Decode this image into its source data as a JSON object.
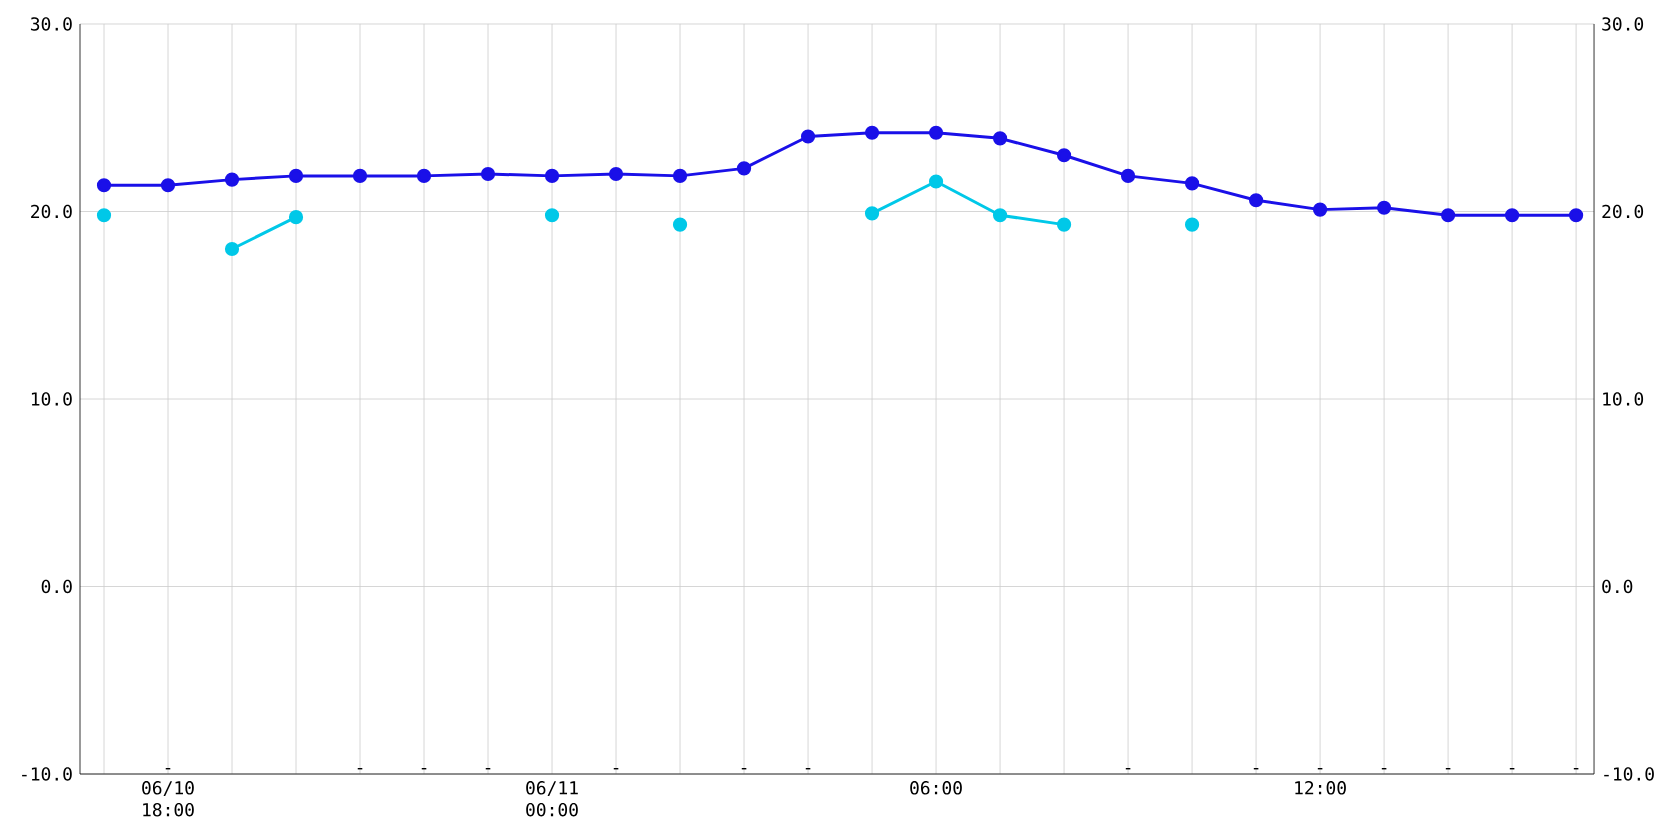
{
  "chart_data": {
    "type": "line",
    "marker": "circle",
    "grid": true,
    "line_style": "solid",
    "categories": [
      null,
      "06/10 18:00",
      null,
      null,
      null,
      null,
      null,
      "06/11 00:00",
      null,
      null,
      null,
      null,
      null,
      "06:00",
      null,
      null,
      null,
      null,
      null,
      "12:00",
      null,
      null,
      null,
      null
    ],
    "series": [
      {
        "color": "#1a10e8",
        "values": [
          21.4,
          21.4,
          21.7,
          21.9,
          21.9,
          21.9,
          22.0,
          21.9,
          22.0,
          21.9,
          22.3,
          24.0,
          24.2,
          24.2,
          23.9,
          23.0,
          21.9,
          21.5,
          20.6,
          20.1,
          20.2,
          19.8,
          19.8,
          19.8
        ]
      },
      {
        "color": "#00c8e8",
        "values": [
          19.8,
          null,
          18.0,
          19.7,
          null,
          null,
          null,
          19.8,
          null,
          19.3,
          null,
          null,
          19.9,
          21.6,
          19.8,
          19.3,
          null,
          19.3,
          null,
          null,
          null,
          null,
          null,
          null
        ]
      }
    ],
    "ylim": [
      -10,
      30
    ],
    "yticks": [
      {
        "value": -10,
        "label": "-10.0"
      },
      {
        "value": 0,
        "label": "0.0"
      },
      {
        "value": 10,
        "label": "10.0"
      },
      {
        "value": 20,
        "label": "20.0"
      },
      {
        "value": 30,
        "label": "30.0"
      }
    ],
    "y2lim": [
      -10,
      30
    ],
    "y2ticks": [
      {
        "value": -10,
        "label": "-10.0"
      },
      {
        "value": 0,
        "label": "0.0"
      },
      {
        "value": 10,
        "label": "10.0"
      },
      {
        "value": 20,
        "label": "20.0"
      },
      {
        "value": 30,
        "label": "30.0"
      }
    ],
    "annotations": [
      "-",
      "-",
      "-",
      "-",
      "-",
      "-",
      "-",
      "-",
      "-",
      "-",
      "-",
      "-",
      "-",
      "-"
    ]
  }
}
